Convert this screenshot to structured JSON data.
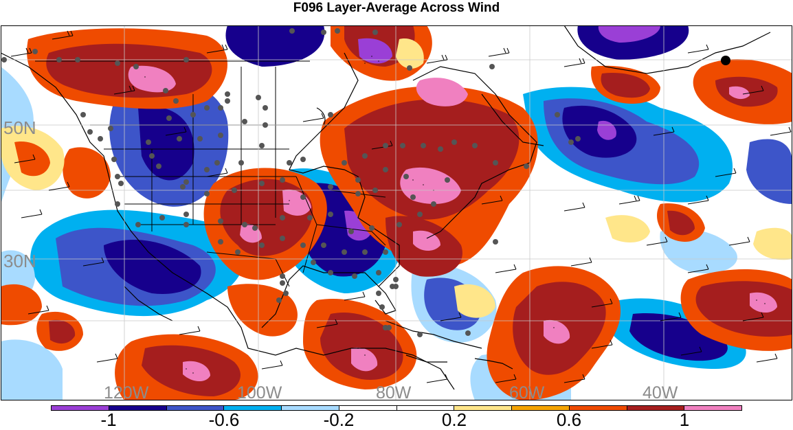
{
  "title": "F096 Layer-Average Across Wind",
  "lat_labels": [
    "50N",
    "30N"
  ],
  "lon_labels": [
    "120W",
    "100W",
    "80W",
    "60W",
    "40W"
  ],
  "colorbar": {
    "colors": [
      "#9a3fd6",
      "#16008c",
      "#3d55c9",
      "#00b0f0",
      "#a8dbff",
      "#ffffff",
      "#ffffff",
      "#ffe68a",
      "#f5a400",
      "#ef4b00",
      "#a51e1e",
      "#f080c0"
    ],
    "labels": [
      "-1",
      "-0.6",
      "-0.2",
      "0.2",
      "0.6",
      "1"
    ]
  }
}
